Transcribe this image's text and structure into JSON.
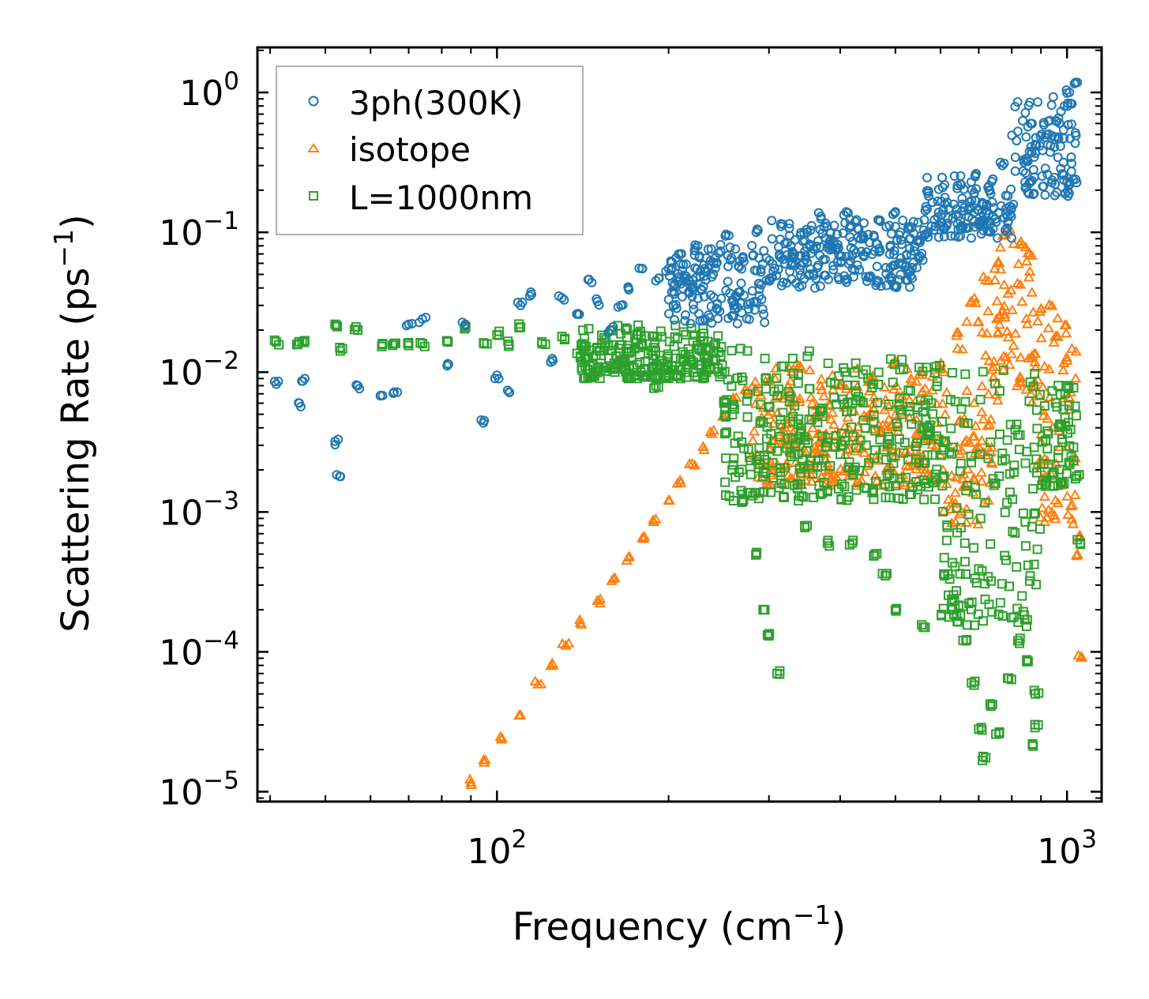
{
  "chart_data": {
    "type": "scatter",
    "xscale": "log",
    "yscale": "log",
    "xlim": [
      38,
      1150
    ],
    "ylim": [
      8.5e-06,
      2.1
    ],
    "xlabel": {
      "main": "Frequency (cm",
      "sup": "−1",
      "tail": ")"
    },
    "ylabel": {
      "main": "Scattering Rate (ps",
      "sup": "−1",
      "tail": ")"
    },
    "xticks": [
      {
        "value": 100,
        "base": "10",
        "exp": "2"
      },
      {
        "value": 1000,
        "base": "10",
        "exp": "3"
      }
    ],
    "yticks": [
      {
        "value": 1,
        "base": "10",
        "exp": "0"
      },
      {
        "value": 0.1,
        "base": "10",
        "exp": "−1"
      },
      {
        "value": 0.01,
        "base": "10",
        "exp": "−2"
      },
      {
        "value": 0.001,
        "base": "10",
        "exp": "−3"
      },
      {
        "value": 0.0001,
        "base": "10",
        "exp": "−4"
      },
      {
        "value": 1e-05,
        "base": "10",
        "exp": "−5"
      }
    ],
    "legend_position": "top-left",
    "series": [
      {
        "name": "3ph(300K)",
        "marker": "circle",
        "color": "#1f77b4",
        "points": [
          [
            41,
            0.0082
          ],
          [
            45,
            0.006
          ],
          [
            46,
            0.009
          ],
          [
            52,
            0.0032
          ],
          [
            53,
            0.0018
          ],
          [
            57,
            0.008
          ],
          [
            63,
            0.0068
          ],
          [
            66,
            0.0072
          ],
          [
            70,
            0.022
          ],
          [
            74,
            0.024
          ],
          [
            82,
            0.0115
          ],
          [
            88,
            0.022
          ],
          [
            95,
            0.0045
          ],
          [
            100,
            0.0095
          ],
          [
            105,
            0.0072
          ],
          [
            110,
            0.03
          ],
          [
            115,
            0.036
          ],
          [
            125,
            0.0125
          ],
          [
            130,
            0.034
          ],
          [
            138,
            0.026
          ],
          [
            145,
            0.046
          ],
          [
            150,
            0.032
          ],
          [
            158,
            0.02
          ],
          [
            165,
            0.03
          ],
          [
            170,
            0.04
          ],
          [
            180,
            0.055
          ],
          [
            190,
            0.045
          ],
          [
            200,
            0.055
          ],
          [
            210,
            0.07
          ],
          [
            225,
            0.08
          ],
          [
            240,
            0.06
          ],
          [
            255,
            0.095
          ],
          [
            270,
            0.065
          ],
          [
            285,
            0.1
          ],
          [
            300,
            0.045
          ],
          [
            315,
            0.11
          ],
          [
            330,
            0.07
          ],
          [
            350,
            0.1
          ],
          [
            370,
            0.13
          ],
          [
            390,
            0.085
          ],
          [
            410,
            0.14
          ],
          [
            440,
            0.09
          ],
          [
            470,
            0.12
          ],
          [
            500,
            0.14
          ],
          [
            530,
            0.11
          ],
          [
            570,
            0.19
          ],
          [
            610,
            0.16
          ],
          [
            650,
            0.22
          ],
          [
            690,
            0.25
          ],
          [
            730,
            0.2
          ],
          [
            770,
            0.3
          ],
          [
            800,
            0.15
          ],
          [
            840,
            0.33
          ],
          [
            880,
            0.42
          ],
          [
            920,
            0.5
          ],
          [
            960,
            0.62
          ],
          [
            990,
            0.8
          ],
          [
            1010,
            1.0
          ],
          [
            1035,
            1.18
          ]
        ],
        "bands": [
          {
            "x0": 200,
            "x1": 300,
            "lo": 0.022,
            "hi": 0.085
          },
          {
            "x0": 300,
            "x1": 560,
            "lo": 0.04,
            "hi": 0.13
          },
          {
            "x0": 560,
            "x1": 800,
            "lo": 0.09,
            "hi": 0.27
          },
          {
            "x0": 800,
            "x1": 1040,
            "lo": 0.18,
            "hi": 1.05
          }
        ]
      },
      {
        "name": "isotope",
        "marker": "triangle",
        "color": "#ff7f0e",
        "points": [
          [
            90,
            1.15e-05
          ],
          [
            95,
            1.6e-05
          ],
          [
            102,
            2.4e-05
          ],
          [
            110,
            3.5e-05
          ],
          [
            118,
            5.8e-05
          ],
          [
            125,
            8.2e-05
          ],
          [
            132,
            0.00011
          ],
          [
            140,
            0.00016
          ],
          [
            150,
            0.00023
          ],
          [
            160,
            0.00033
          ],
          [
            170,
            0.00047
          ],
          [
            180,
            0.00065
          ],
          [
            190,
            0.00088
          ],
          [
            200,
            0.0012
          ],
          [
            210,
            0.0016
          ],
          [
            220,
            0.0022
          ],
          [
            230,
            0.0029
          ],
          [
            240,
            0.0038
          ],
          [
            250,
            0.0048
          ],
          [
            260,
            0.0062
          ],
          [
            275,
            0.0072
          ],
          [
            300,
            0.0085
          ],
          [
            340,
            0.011
          ],
          [
            400,
            0.008
          ],
          [
            450,
            0.0085
          ],
          [
            500,
            0.012
          ],
          [
            550,
            0.0095
          ],
          [
            600,
            0.0105
          ],
          [
            640,
            0.018
          ],
          [
            680,
            0.032
          ],
          [
            720,
            0.045
          ],
          [
            760,
            0.06
          ],
          [
            790,
            0.1
          ],
          [
            830,
            0.085
          ],
          [
            860,
            0.07
          ],
          [
            900,
            0.028
          ],
          [
            930,
            0.03
          ],
          [
            960,
            0.018
          ],
          [
            1000,
            0.012
          ],
          [
            1040,
            0.00048
          ],
          [
            1050,
            0.00065
          ],
          [
            1060,
            9e-05
          ]
        ],
        "bands": [
          {
            "x0": 280,
            "x1": 600,
            "lo": 0.0015,
            "hi": 0.011
          },
          {
            "x0": 600,
            "x1": 740,
            "lo": 0.0008,
            "hi": 0.035
          },
          {
            "x0": 740,
            "x1": 880,
            "lo": 0.006,
            "hi": 0.1
          },
          {
            "x0": 880,
            "x1": 1040,
            "lo": 0.0008,
            "hi": 0.03
          }
        ]
      },
      {
        "name": "L=1000nm",
        "marker": "square",
        "color": "#2ca02c",
        "points": [
          [
            41,
            0.0165
          ],
          [
            45,
            0.0165
          ],
          [
            46,
            0.0168
          ],
          [
            52,
            0.022
          ],
          [
            53,
            0.015
          ],
          [
            57,
            0.02
          ],
          [
            63,
            0.016
          ],
          [
            66,
            0.016
          ],
          [
            70,
            0.0155
          ],
          [
            74,
            0.016
          ],
          [
            82,
            0.0165
          ],
          [
            88,
            0.021
          ],
          [
            95,
            0.016
          ],
          [
            100,
            0.0185
          ],
          [
            105,
            0.0158
          ],
          [
            110,
            0.021
          ],
          [
            120,
            0.016
          ],
          [
            130,
            0.018
          ],
          [
            140,
            0.013
          ],
          [
            150,
            0.015
          ],
          [
            160,
            0.0105
          ],
          [
            170,
            0.009
          ],
          [
            180,
            0.0095
          ],
          [
            190,
            0.008
          ],
          [
            200,
            0.0095
          ],
          [
            210,
            0.009
          ],
          [
            230,
            0.009
          ],
          [
            250,
            0.006
          ],
          [
            270,
            0.0012
          ],
          [
            285,
            0.0005
          ],
          [
            295,
            0.0002
          ],
          [
            300,
            0.00013
          ],
          [
            310,
            7e-05
          ],
          [
            350,
            0.0008
          ],
          [
            380,
            0.0006
          ],
          [
            420,
            0.0006
          ],
          [
            460,
            0.0005
          ],
          [
            480,
            0.00035
          ],
          [
            500,
            0.0002
          ],
          [
            560,
            0.00015
          ],
          [
            610,
            0.00035
          ],
          [
            640,
            0.00018
          ],
          [
            665,
            0.00012
          ],
          [
            680,
            6e-05
          ],
          [
            700,
            2.8e-05
          ],
          [
            720,
            1.75e-05
          ],
          [
            740,
            4.2e-05
          ],
          [
            760,
            2.6e-05
          ],
          [
            790,
            6.5e-05
          ],
          [
            820,
            0.00012
          ],
          [
            850,
            8.5e-05
          ],
          [
            870,
            2.2e-05
          ],
          [
            880,
            5e-05
          ],
          [
            890,
            3e-05
          ],
          [
            1000,
            0.008
          ],
          [
            1040,
            0.0018
          ],
          [
            1055,
            0.0006
          ]
        ],
        "bands": [
          {
            "x0": 140,
            "x1": 250,
            "lo": 0.009,
            "hi": 0.022
          },
          {
            "x0": 250,
            "x1": 600,
            "lo": 0.0012,
            "hi": 0.015
          },
          {
            "x0": 600,
            "x1": 900,
            "lo": 0.00015,
            "hi": 0.012
          },
          {
            "x0": 900,
            "x1": 1040,
            "lo": 0.0015,
            "hi": 0.009
          }
        ]
      }
    ]
  }
}
